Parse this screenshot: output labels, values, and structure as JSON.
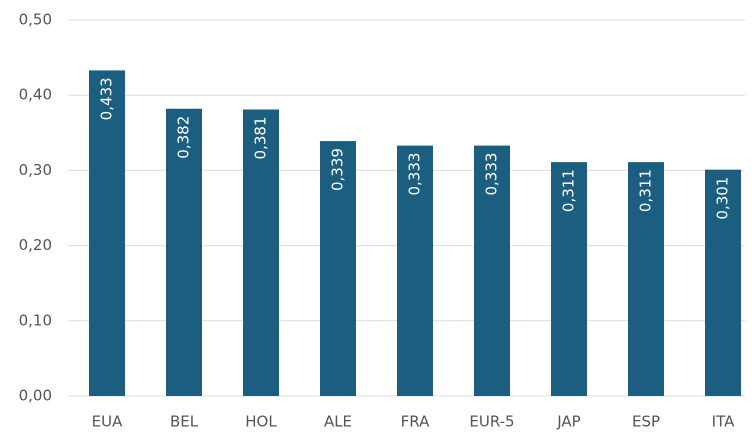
{
  "chart_data": {
    "type": "bar",
    "categories": [
      "EUA",
      "BEL",
      "HOL",
      "ALE",
      "FRA",
      "EUR-5",
      "JAP",
      "ESP",
      "ITA"
    ],
    "values": [
      0.433,
      0.382,
      0.381,
      0.339,
      0.333,
      0.333,
      0.311,
      0.311,
      0.301
    ],
    "value_labels": [
      "0,433",
      "0,382",
      "0,381",
      "0,339",
      "0,333",
      "0,333",
      "0,311",
      "0,311",
      "0,301"
    ],
    "color": "#1b5e7f",
    "ylim": [
      0,
      0.5
    ],
    "yticks": [
      {
        "value": 0,
        "label": "0,00"
      },
      {
        "value": 0.1,
        "label": "0,10"
      },
      {
        "value": 0.2,
        "label": "0,20"
      },
      {
        "value": 0.3,
        "label": "0,30"
      },
      {
        "value": 0.4,
        "label": "0,40"
      },
      {
        "value": 0.5,
        "label": "0,50"
      }
    ],
    "grid": true
  }
}
